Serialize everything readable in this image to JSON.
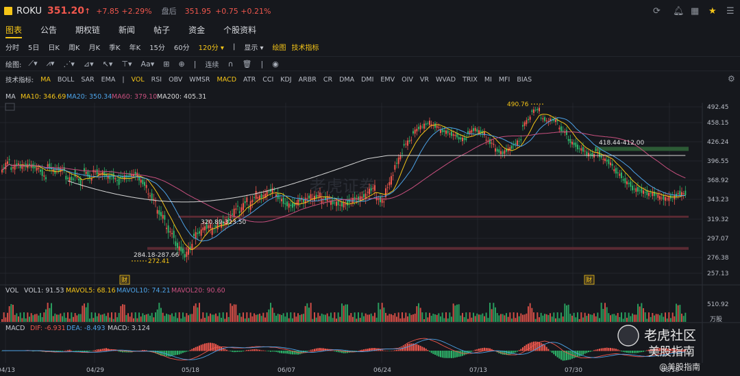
{
  "header": {
    "symbol": "ROKU",
    "price": "351.20",
    "arrow": "↑",
    "change": "+7.85 +2.29%",
    "after_label": "盘后",
    "after_price": "351.95",
    "after_change": "+0.75 +0.21%"
  },
  "tabs": [
    "图表",
    "公告",
    "期权链",
    "新闻",
    "帖子",
    "资金",
    "个股资料"
  ],
  "periods": [
    "分时",
    "5日",
    "日K",
    "周K",
    "月K",
    "季K",
    "年K",
    "15分",
    "60分",
    "120分 ▾",
    "|",
    "显示 ▾",
    "绘图",
    "技术指标"
  ],
  "draw_toolbar": {
    "label": "绘图:",
    "lianxu": "连续"
  },
  "indicators": {
    "label": "技术指标:",
    "items": [
      "MA",
      "BOLL",
      "SAR",
      "EMA",
      "|",
      "VOL",
      "RSI",
      "OBV",
      "WMSR",
      "MACD",
      "ATR",
      "CCI",
      "KDJ",
      "ARBR",
      "CR",
      "DMA",
      "DMI",
      "EMV",
      "OIV",
      "VR",
      "WVAD",
      "TRIX",
      "MI",
      "MFI",
      "BIAS"
    ]
  },
  "colors": {
    "up": "#f0574d",
    "down": "#2db469",
    "ma10": "#f5c518",
    "ma20": "#4da3e8",
    "ma60": "#c9507f",
    "ma200": "#d8d8d8"
  },
  "chart_data": {
    "type": "candlestick",
    "legend": {
      "title": "MA",
      "ma10": "MA10: 346.69",
      "ma20": "MA20: 350.34",
      "ma60": "MA60: 379.10",
      "ma200": "MA200: 405.31"
    },
    "y_ticks": [
      "492.45",
      "458.15",
      "426.24",
      "396.55",
      "368.92",
      "343.23",
      "319.32",
      "297.07",
      "276.38",
      "257.13"
    ],
    "x_ticks": [
      "04/13",
      "04/29",
      "05/18",
      "06/07",
      "06/24",
      "07/13",
      "07/30",
      "08/18"
    ],
    "annotations": {
      "high": "490.76",
      "low": "272.41",
      "band_low": "284.18-287.66",
      "band_mid": "320.89-323.50",
      "band_high": "418.44-412.00"
    },
    "earnings_marker": "财",
    "close_path": [
      [
        380,
        400
      ],
      [
        384,
        393
      ],
      [
        388,
        390
      ],
      [
        392,
        385
      ],
      [
        388,
        370
      ],
      [
        392,
        380
      ],
      [
        384,
        384
      ],
      [
        372,
        370
      ],
      [
        380,
        360
      ],
      [
        385,
        369
      ],
      [
        383,
        377
      ],
      [
        380,
        372
      ],
      [
        378,
        365
      ],
      [
        373,
        374
      ],
      [
        375,
        378
      ],
      [
        372,
        360
      ],
      [
        352,
        340
      ],
      [
        330,
        320
      ],
      [
        310,
        300
      ],
      [
        292,
        282
      ],
      [
        276,
        290
      ],
      [
        300,
        305
      ],
      [
        308,
        312
      ],
      [
        305,
        316
      ],
      [
        312,
        318
      ],
      [
        320,
        336
      ],
      [
        325,
        345
      ],
      [
        330,
        352
      ],
      [
        345,
        349
      ],
      [
        352,
        357
      ],
      [
        350,
        340
      ],
      [
        338,
        335
      ],
      [
        335,
        345
      ],
      [
        340,
        348
      ],
      [
        343,
        350
      ],
      [
        342,
        346
      ],
      [
        340,
        338
      ],
      [
        336,
        338
      ],
      [
        340,
        345
      ],
      [
        343,
        349
      ],
      [
        352,
        360
      ],
      [
        345,
        340
      ],
      [
        350,
        378
      ],
      [
        385,
        410
      ],
      [
        420,
        430
      ],
      [
        440,
        452
      ],
      [
        450,
        460
      ],
      [
        455,
        450
      ],
      [
        445,
        442
      ],
      [
        440,
        436
      ],
      [
        432,
        430
      ],
      [
        440,
        448
      ],
      [
        445,
        440
      ],
      [
        430,
        422
      ],
      [
        415,
        408
      ],
      [
        410,
        418
      ],
      [
        420,
        430
      ],
      [
        450,
        470
      ],
      [
        482,
        488
      ],
      [
        470,
        460
      ],
      [
        465,
        462
      ],
      [
        450,
        440
      ],
      [
        430,
        420
      ],
      [
        418,
        412
      ],
      [
        408,
        405
      ],
      [
        415,
        398
      ],
      [
        400,
        390
      ],
      [
        385,
        374
      ],
      [
        370,
        362
      ],
      [
        358,
        355
      ],
      [
        355,
        350
      ],
      [
        352,
        348
      ],
      [
        346,
        344
      ],
      [
        345,
        348
      ],
      [
        351,
        351
      ]
    ],
    "volume": {
      "label": "VOL",
      "vol1": "VOL1: 91.53",
      "mavol5": "MAVOL5: 68.16",
      "mavol10": "MAVOL10: 74.21",
      "mavol20": "MAVOL20: 90.60",
      "tick": "510.92",
      "unit": "万股"
    },
    "macd": {
      "label": "MACD",
      "dif": "DIF: -6.931",
      "dea": "DEA: -8.493",
      "macd": "MACD: 3.124"
    }
  },
  "watermark": {
    "center": "老虎证券",
    "brand1": "老虎社区",
    "brand2": "美股指南",
    "handle": "@美股指南"
  }
}
